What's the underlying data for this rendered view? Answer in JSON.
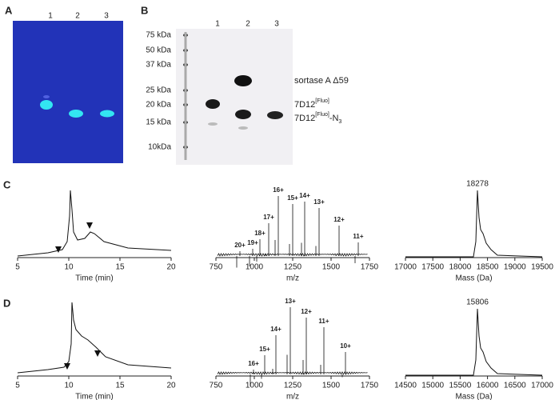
{
  "panels": {
    "a": {
      "label": "A",
      "lanes": [
        "1",
        "2",
        "3"
      ]
    },
    "b": {
      "label": "B",
      "lanes": [
        "1",
        "2",
        "3"
      ],
      "markers": [
        "75 kDa",
        "50 kDa",
        "37 kDa",
        "25 kDa",
        "20 kDa",
        "15 kDa",
        "10kDa"
      ],
      "annotations": {
        "sortase": "sortase A Δ59",
        "fluo": {
          "base": "7D12",
          "sup": "[Fluo]"
        },
        "fluo_n3": {
          "base": "7D12",
          "sup": "[Fluo]",
          "rest": "-N",
          "sub": "3"
        }
      }
    },
    "c": {
      "label": "C",
      "chromatogram": {
        "ticks": [
          "5",
          "10",
          "15",
          "20"
        ],
        "xlabel": "Time (min)"
      },
      "ms": {
        "ticks": [
          "750",
          "1000",
          "1250",
          "1500",
          "1750"
        ],
        "xlabel": "m/z",
        "peaks": [
          "20+",
          "19+",
          "18+",
          "17+",
          "16+",
          "15+",
          "14+",
          "13+",
          "12+",
          "11+"
        ]
      },
      "deconvoluted": {
        "ticks": [
          "17000",
          "17500",
          "18000",
          "18500",
          "19000",
          "19500"
        ],
        "xlabel": "Mass (Da)",
        "peak": "18278"
      }
    },
    "d": {
      "label": "D",
      "chromatogram": {
        "ticks": [
          "5",
          "10",
          "15",
          "20"
        ],
        "xlabel": "Time (min)"
      },
      "ms": {
        "ticks": [
          "750",
          "1000",
          "1250",
          "1500",
          "1750"
        ],
        "xlabel": "m/z",
        "peaks": [
          "16+",
          "15+",
          "14+",
          "13+",
          "12+",
          "11+",
          "10+"
        ]
      },
      "deconvoluted": {
        "ticks": [
          "14500",
          "15000",
          "15500",
          "16000",
          "16500",
          "17000"
        ],
        "xlabel": "Mass (Da)",
        "peak": "15806"
      }
    }
  }
}
